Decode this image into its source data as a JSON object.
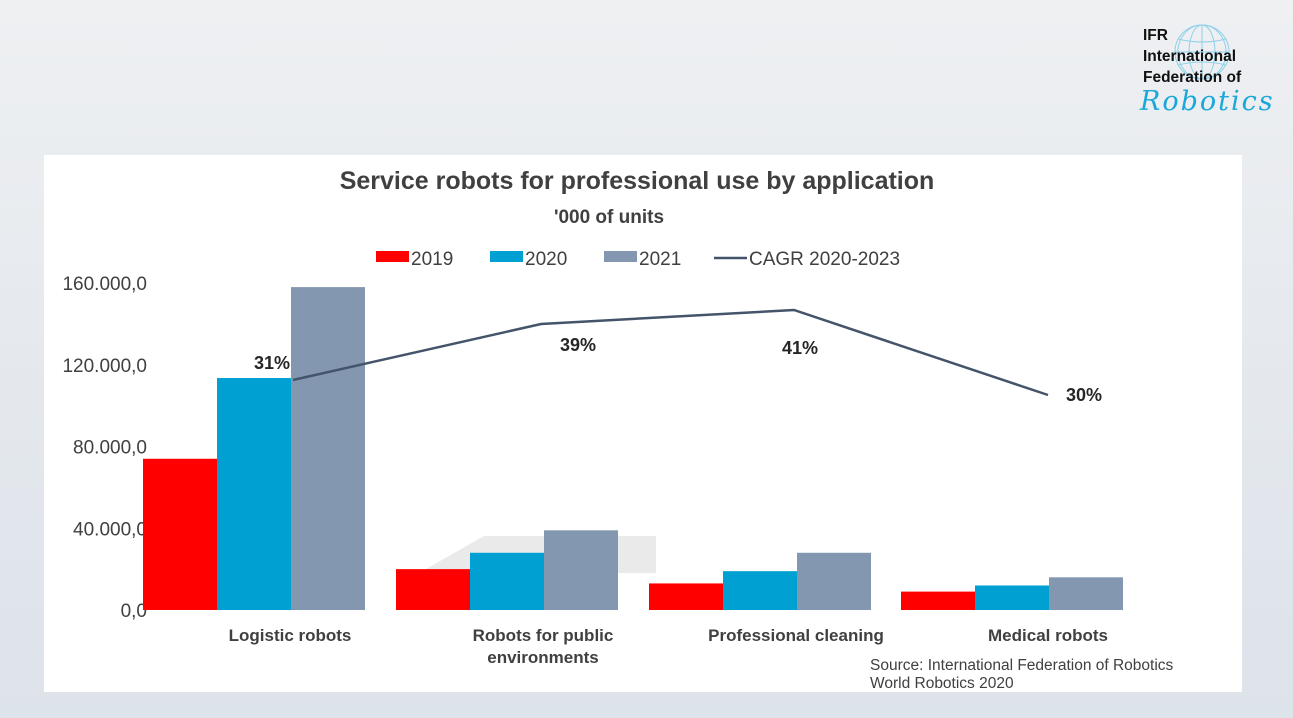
{
  "logo": {
    "line1": "IFR",
    "line2": "International",
    "line3": "Federation of",
    "line4": "Robotics"
  },
  "chart_data": {
    "type": "bar",
    "title": "Service robots for professional use by application",
    "subtitle": "'000 of units",
    "categories": [
      [
        "Logistic robots"
      ],
      [
        "Robots for public",
        "environments"
      ],
      [
        "Professional cleaning"
      ],
      [
        "Medical robots"
      ]
    ],
    "series": [
      {
        "name": "2019",
        "color": "#ff0000",
        "values": [
          74000,
          20000,
          13000,
          9000
        ]
      },
      {
        "name": "2020",
        "color": "#00a0d2",
        "values": [
          113500,
          28000,
          19000,
          12000
        ]
      },
      {
        "name": "2021",
        "color": "#8497b0",
        "values": [
          158000,
          39000,
          28000,
          16000
        ]
      }
    ],
    "line_series": {
      "name": "CAGR 2020-2023",
      "color": "#44546a",
      "values": [
        "31%",
        "39%",
        "41%",
        "30%"
      ]
    },
    "y_ticks": [
      "0,0",
      "40.000,0",
      "80.000,0",
      "120.000,0",
      "160.000,0"
    ],
    "ylim": [
      0,
      160000
    ],
    "xlabel": "",
    "ylabel": "",
    "legend_position": "top",
    "grid": false
  },
  "source": {
    "line1": "Source: International Federation of Robotics",
    "line2": "World Robotics 2020"
  }
}
